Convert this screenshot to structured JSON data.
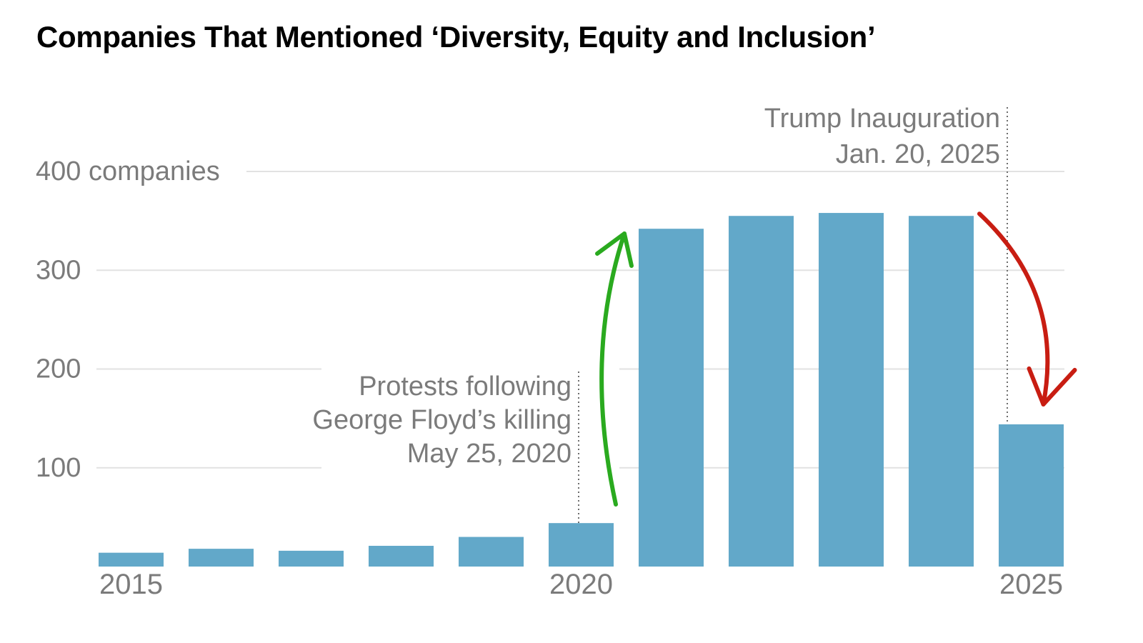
{
  "chart_data": {
    "type": "bar",
    "title": "Companies That Mentioned ‘Diversity, Equity and Inclusion’",
    "categories": [
      "2015",
      "2016",
      "2017",
      "2018",
      "2019",
      "2020",
      "2021",
      "2022",
      "2023",
      "2024",
      "2025"
    ],
    "values": [
      14,
      18,
      16,
      21,
      30,
      44,
      342,
      355,
      358,
      355,
      144
    ],
    "x_tick_labels": [
      {
        "category": "2015",
        "label": "2015"
      },
      {
        "category": "2020",
        "label": "2020"
      },
      {
        "category": "2025",
        "label": "2025"
      }
    ],
    "y_ticks": [
      {
        "value": 100,
        "label": "100"
      },
      {
        "value": 200,
        "label": "200"
      },
      {
        "value": 300,
        "label": "300"
      },
      {
        "value": 400,
        "label": "400 companies"
      }
    ],
    "ylim": [
      0,
      400
    ],
    "xlabel": "",
    "ylabel": "",
    "grid": true,
    "legend": "none",
    "annotations": [
      {
        "id": "floyd",
        "category": "2020",
        "lines": [
          "Protests following",
          "George Floyd’s killing",
          "May 25, 2020"
        ]
      },
      {
        "id": "trump",
        "category": "2025",
        "lines": [
          "Trump Inauguration",
          "Jan. 20, 2025"
        ]
      }
    ],
    "arrows": [
      {
        "id": "rise",
        "from": "2020",
        "to": "2021",
        "color": "#2aaa1f"
      },
      {
        "id": "drop",
        "from": "2024",
        "to": "2025",
        "color": "#c81d12"
      }
    ],
    "colors": {
      "bar": "#62a8c9",
      "grid": "#e2e2e2",
      "tick_text": "#7b7b7b",
      "annotation_text": "#7b7b7b",
      "title": "#000000"
    }
  }
}
